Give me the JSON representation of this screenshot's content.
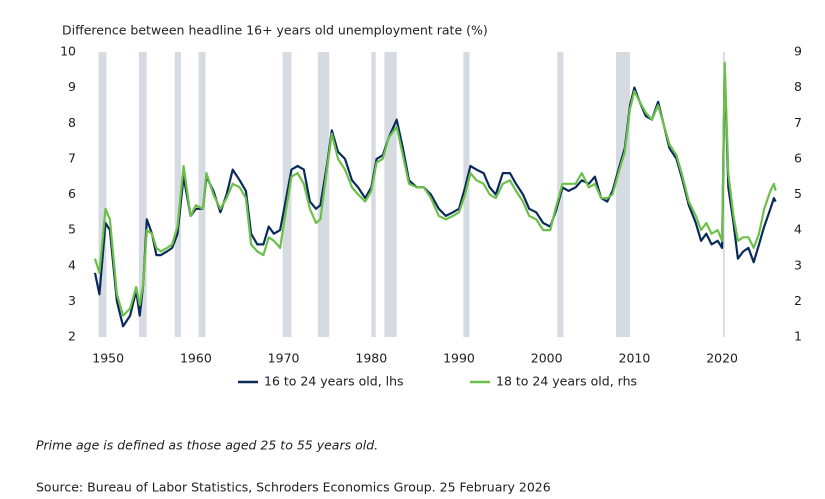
{
  "chart_data": {
    "type": "line",
    "title": "Difference between headline 16+ years old unemployment rate (%)",
    "note": "Prime age is defined as those aged 25 to 55 years old.",
    "source": "Source: Bureau of Labor Statistics, Schroders Economics Group. 25 February 2026",
    "xlim": [
      1947.7,
      2026.6
    ],
    "xticks": [
      1950,
      1960,
      1970,
      1980,
      1990,
      2000,
      2010,
      2020
    ],
    "ylim": [
      2,
      10
    ],
    "yticks": [
      2,
      3,
      4,
      5,
      6,
      7,
      8,
      9,
      10
    ],
    "y2lim": [
      1,
      9
    ],
    "y2ticks": [
      1,
      2,
      3,
      4,
      5,
      6,
      7,
      8,
      9
    ],
    "recession_color": "#d5dbe1",
    "recessions": [
      [
        1948.9,
        1949.8
      ],
      [
        1953.5,
        1954.4
      ],
      [
        1957.6,
        1958.3
      ],
      [
        1960.3,
        1961.1
      ],
      [
        1969.9,
        1970.9
      ],
      [
        1973.9,
        1975.2
      ],
      [
        1980.0,
        1980.5
      ],
      [
        1981.5,
        1982.9
      ],
      [
        1990.5,
        1991.2
      ],
      [
        2001.2,
        2001.9
      ],
      [
        2007.9,
        2009.5
      ],
      [
        2020.1,
        2020.3
      ]
    ],
    "x": [
      1948.5,
      1949.0,
      1949.7,
      1950.2,
      1951.0,
      1951.7,
      1952.5,
      1953.2,
      1953.6,
      1954.0,
      1954.4,
      1955.0,
      1955.5,
      1956.0,
      1956.7,
      1957.3,
      1957.9,
      1958.6,
      1959.4,
      1960.0,
      1960.8,
      1961.2,
      1962.0,
      1962.8,
      1963.5,
      1964.2,
      1965.0,
      1965.7,
      1966.3,
      1967.0,
      1967.7,
      1968.3,
      1968.9,
      1969.6,
      1970.3,
      1970.9,
      1971.6,
      1972.3,
      1973.0,
      1973.7,
      1974.2,
      1975.0,
      1975.5,
      1976.2,
      1977.0,
      1977.8,
      1978.5,
      1979.3,
      1980.0,
      1980.6,
      1981.3,
      1982.0,
      1982.9,
      1983.6,
      1984.3,
      1985.2,
      1986.0,
      1986.8,
      1987.7,
      1988.5,
      1989.3,
      1990.0,
      1990.7,
      1991.3,
      1992.0,
      1992.8,
      1993.5,
      1994.2,
      1995.0,
      1995.8,
      1996.5,
      1997.3,
      1998.0,
      1998.8,
      1999.6,
      2000.4,
      2001.0,
      2001.8,
      2002.5,
      2003.3,
      2004.0,
      2004.8,
      2005.5,
      2006.2,
      2006.9,
      2007.5,
      2008.3,
      2008.9,
      2009.5,
      2010.0,
      2010.6,
      2011.3,
      2012.0,
      2012.7,
      2013.3,
      2014.0,
      2014.8,
      2015.5,
      2016.2,
      2017.0,
      2017.6,
      2018.2,
      2018.8,
      2019.5,
      2020.0,
      2020.3,
      2020.7,
      2021.3,
      2021.8,
      2022.4,
      2023.0,
      2023.6,
      2024.2,
      2024.8,
      2025.5,
      2025.9,
      2026.1
    ],
    "series": [
      {
        "name": "16 to 24 years old, lhs",
        "color": "#0b2a5c",
        "axis": "y",
        "values": [
          3.8,
          3.2,
          5.2,
          5.0,
          3.0,
          2.3,
          2.6,
          3.3,
          2.6,
          3.5,
          5.3,
          4.9,
          4.3,
          4.3,
          4.4,
          4.5,
          4.9,
          6.5,
          5.4,
          5.6,
          5.6,
          6.5,
          6.1,
          5.5,
          6.0,
          6.7,
          6.4,
          6.1,
          4.9,
          4.6,
          4.6,
          5.1,
          4.9,
          5.0,
          5.9,
          6.7,
          6.8,
          6.7,
          5.8,
          5.6,
          5.7,
          6.9,
          7.8,
          7.2,
          7.0,
          6.4,
          6.2,
          5.9,
          6.2,
          7.0,
          7.1,
          7.6,
          8.1,
          7.3,
          6.4,
          6.2,
          6.2,
          6.0,
          5.6,
          5.4,
          5.5,
          5.6,
          6.2,
          6.8,
          6.7,
          6.6,
          6.2,
          6.0,
          6.6,
          6.6,
          6.3,
          6.0,
          5.6,
          5.5,
          5.2,
          5.1,
          5.5,
          6.2,
          6.1,
          6.2,
          6.4,
          6.3,
          6.5,
          5.9,
          5.8,
          6.1,
          6.8,
          7.3,
          8.5,
          9.0,
          8.6,
          8.2,
          8.1,
          8.6,
          8.0,
          7.3,
          7.0,
          6.4,
          5.7,
          5.2,
          4.7,
          4.9,
          4.6,
          4.7,
          4.5,
          9.6,
          6.2,
          5.2,
          4.2,
          4.4,
          4.5,
          4.1,
          4.6,
          5.1,
          5.6,
          5.9,
          5.8
        ]
      },
      {
        "name": "18 to 24 years old, rhs",
        "color": "#6cc04a",
        "axis": "y2",
        "values": [
          3.2,
          2.8,
          4.6,
          4.3,
          2.2,
          1.6,
          1.8,
          2.4,
          1.9,
          2.5,
          4.0,
          3.9,
          3.5,
          3.4,
          3.5,
          3.6,
          4.1,
          5.8,
          4.4,
          4.7,
          4.6,
          5.6,
          5.0,
          4.6,
          4.9,
          5.3,
          5.2,
          4.9,
          3.6,
          3.4,
          3.3,
          3.8,
          3.7,
          3.5,
          4.6,
          5.5,
          5.6,
          5.3,
          4.6,
          4.2,
          4.3,
          5.8,
          6.7,
          6.0,
          5.7,
          5.2,
          5.0,
          4.8,
          5.1,
          5.9,
          6.0,
          6.6,
          6.9,
          6.1,
          5.3,
          5.2,
          5.2,
          4.9,
          4.4,
          4.3,
          4.4,
          4.5,
          5.0,
          5.6,
          5.4,
          5.3,
          5.0,
          4.9,
          5.3,
          5.4,
          5.1,
          4.8,
          4.4,
          4.3,
          4.0,
          4.0,
          4.6,
          5.3,
          5.3,
          5.3,
          5.6,
          5.2,
          5.3,
          4.9,
          4.9,
          5.0,
          5.7,
          6.2,
          7.4,
          7.9,
          7.6,
          7.3,
          7.1,
          7.5,
          7.0,
          6.4,
          6.1,
          5.5,
          4.8,
          4.4,
          4.0,
          4.2,
          3.9,
          4.0,
          3.7,
          8.7,
          5.6,
          4.4,
          3.7,
          3.8,
          3.8,
          3.5,
          3.9,
          4.6,
          5.1,
          5.3,
          5.1
        ]
      }
    ]
  }
}
